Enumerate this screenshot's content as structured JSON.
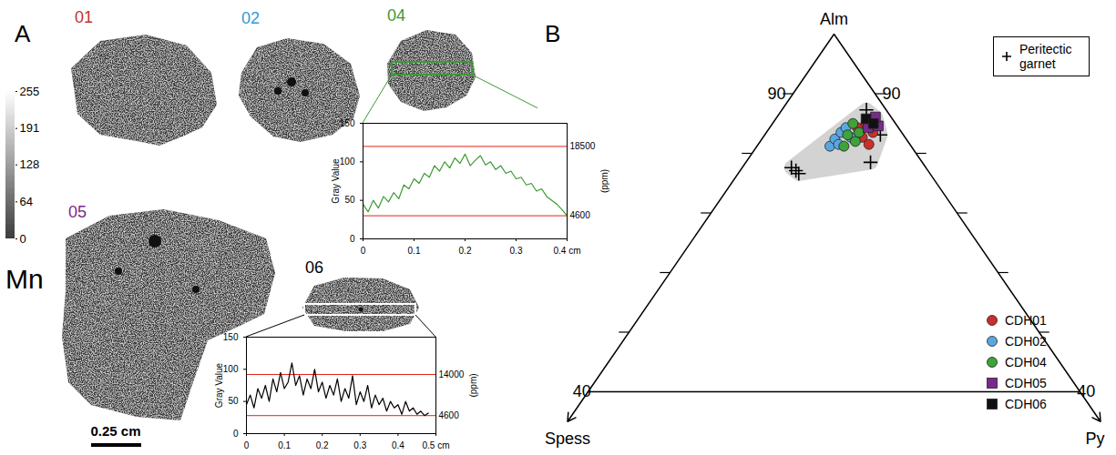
{
  "panel_labels": [
    "A",
    "B"
  ],
  "maps": {
    "element": "Mn",
    "colorbar": {
      "lim": [
        0,
        255
      ],
      "ticks": [
        0,
        64,
        128,
        191,
        255
      ]
    },
    "grains": [
      {
        "label": "01",
        "color": "#c8302c"
      },
      {
        "label": "02",
        "color": "#2f9ad6"
      },
      {
        "label": "04",
        "color": "#3d9a34"
      },
      {
        "label": "05",
        "color": "#7a2a8c"
      },
      {
        "label": "06",
        "color": "#000000"
      }
    ],
    "scale_bar": "0.25 cm"
  },
  "chart_data": [
    {
      "type": "line",
      "grain": "04",
      "color": "#3d9a34",
      "ylabel": "Gray Value",
      "y2label": "(ppm)",
      "xlim": [
        0,
        0.4
      ],
      "xticks": [
        0,
        0.1,
        0.2,
        0.3,
        {
          "value": 0.4,
          "label": "0.4 cm"
        }
      ],
      "ylim": [
        0,
        150
      ],
      "yticks": [
        0,
        50,
        100,
        150
      ],
      "reference_lines": [
        {
          "value": 120,
          "label": "18500"
        },
        {
          "value": 30,
          "label": "4600"
        }
      ],
      "x": [
        0,
        0.01,
        0.02,
        0.03,
        0.04,
        0.05,
        0.06,
        0.07,
        0.08,
        0.09,
        0.1,
        0.11,
        0.12,
        0.13,
        0.14,
        0.15,
        0.16,
        0.17,
        0.18,
        0.19,
        0.2,
        0.21,
        0.22,
        0.23,
        0.24,
        0.25,
        0.26,
        0.27,
        0.28,
        0.29,
        0.3,
        0.31,
        0.32,
        0.33,
        0.34,
        0.35,
        0.36,
        0.37,
        0.38,
        0.39,
        0.4
      ],
      "values": [
        45,
        35,
        50,
        40,
        55,
        48,
        60,
        52,
        70,
        65,
        78,
        72,
        85,
        80,
        95,
        88,
        100,
        92,
        105,
        98,
        110,
        95,
        102,
        108,
        96,
        100,
        90,
        95,
        85,
        88,
        78,
        80,
        70,
        72,
        62,
        65,
        55,
        50,
        45,
        38,
        30
      ]
    },
    {
      "type": "line",
      "grain": "06",
      "color": "#000000",
      "ylabel": "Gray Value",
      "y2label": "(ppm)",
      "xlim": [
        0,
        0.5
      ],
      "xticks": [
        0,
        0.1,
        0.2,
        0.3,
        0.4,
        {
          "value": 0.5,
          "label": "0.5 cm"
        }
      ],
      "ylim": [
        0,
        150
      ],
      "yticks": [
        0,
        50,
        100,
        150
      ],
      "reference_lines": [
        {
          "value": 92,
          "label": "14000"
        },
        {
          "value": 28,
          "label": "4600"
        }
      ],
      "x": [
        0,
        0.01,
        0.02,
        0.03,
        0.04,
        0.05,
        0.06,
        0.07,
        0.08,
        0.09,
        0.1,
        0.11,
        0.12,
        0.13,
        0.14,
        0.15,
        0.16,
        0.17,
        0.18,
        0.19,
        0.2,
        0.21,
        0.22,
        0.23,
        0.24,
        0.25,
        0.26,
        0.27,
        0.28,
        0.29,
        0.3,
        0.31,
        0.32,
        0.33,
        0.34,
        0.35,
        0.36,
        0.37,
        0.38,
        0.39,
        0.4,
        0.41,
        0.42,
        0.43,
        0.44,
        0.45,
        0.46,
        0.47,
        0.48
      ],
      "values": [
        45,
        60,
        40,
        70,
        55,
        75,
        50,
        85,
        65,
        95,
        70,
        80,
        110,
        75,
        90,
        60,
        85,
        70,
        100,
        65,
        80,
        55,
        75,
        60,
        85,
        50,
        70,
        55,
        90,
        45,
        65,
        50,
        75,
        40,
        60,
        45,
        55,
        35,
        50,
        40,
        45,
        30,
        50,
        35,
        40,
        30,
        35,
        28,
        32
      ]
    },
    {
      "type": "ternary",
      "apexes": {
        "top": "Alm",
        "left": "Spess",
        "right": "Py"
      },
      "alm_lim": [
        40,
        100
      ],
      "alm_ticks": [
        50,
        60,
        70,
        80,
        90
      ],
      "alm_labeled_ticks": [
        40,
        90
      ],
      "legend": "right",
      "series": [
        {
          "name": "Peritectic garnet",
          "color": "#000000",
          "marker": "plus",
          "points": [
            [
              77.6,
              16.4,
              6.0
            ],
            [
              76.6,
              16.0,
              7.4
            ],
            [
              77.1,
              16.1,
              6.8
            ],
            [
              78.5,
              6.3,
              15.2
            ],
            [
              87.3,
              2.4,
              10.3
            ],
            [
              83.1,
              2.8,
              14.1
            ]
          ]
        },
        {
          "name": "CDH01",
          "color": "#c8302c",
          "marker": "circle",
          "points": [
            [
              82.7,
              5.2,
              12.1
            ],
            [
              81.5,
              5.0,
              13.5
            ],
            [
              83.5,
              3.5,
              13.0
            ],
            [
              84.3,
              5.0,
              10.7
            ],
            [
              85.0,
              3.6,
              11.4
            ]
          ]
        },
        {
          "name": "CDH02",
          "color": "#5aa7e0",
          "marker": "circle",
          "points": [
            [
              81.2,
              9.9,
              8.9
            ],
            [
              82.4,
              8.7,
              8.9
            ],
            [
              83.5,
              7.4,
              9.1
            ],
            [
              84.3,
              6.4,
              9.3
            ],
            [
              81.5,
              8.7,
              9.8
            ],
            [
              82.7,
              6.6,
              10.7
            ]
          ]
        },
        {
          "name": "CDH04",
          "color": "#3da33a",
          "marker": "circle",
          "points": [
            [
              83.1,
              6.8,
              10.1
            ],
            [
              82.0,
              6.4,
              11.6
            ],
            [
              83.5,
              5.2,
              11.3
            ],
            [
              85.0,
              5.2,
              9.8
            ],
            [
              81.2,
              8.2,
              10.6
            ]
          ]
        },
        {
          "name": "CDH05",
          "color": "#7a2a8c",
          "marker": "square",
          "points": [
            [
              85.3,
              2.8,
              11.9
            ],
            [
              84.6,
              2.3,
              13.1
            ],
            [
              86.1,
              1.9,
              12.0
            ],
            [
              84.3,
              3.7,
              12.0
            ]
          ]
        },
        {
          "name": "CDH06",
          "color": "#111111",
          "marker": "square",
          "points": [
            [
              85.8,
              3.2,
              11.0
            ],
            [
              85.0,
              2.7,
              12.3
            ]
          ]
        }
      ]
    }
  ]
}
